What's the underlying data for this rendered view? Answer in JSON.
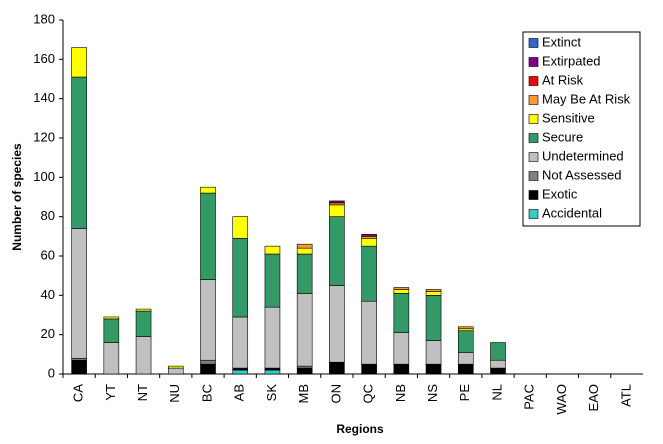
{
  "chart_data": {
    "type": "stacked_bar",
    "x_label": "Regions",
    "y_label": "Number of species",
    "categories": [
      "CA",
      "YT",
      "NT",
      "NU",
      "BC",
      "AB",
      "SK",
      "MB",
      "ON",
      "QC",
      "NB",
      "NS",
      "PE",
      "NL",
      "PAC",
      "WAO",
      "EAO",
      "ATL"
    ],
    "series": [
      {
        "name": "Accidental",
        "color": "#33cccc",
        "values": [
          0,
          0,
          0,
          0,
          0,
          2,
          2,
          0,
          0,
          0,
          0,
          0,
          0,
          0,
          0,
          0,
          0,
          0
        ]
      },
      {
        "name": "Exotic",
        "color": "#000000",
        "values": [
          7,
          0,
          0,
          0,
          5,
          1,
          1,
          3,
          6,
          5,
          5,
          5,
          5,
          3,
          0,
          0,
          0,
          0
        ]
      },
      {
        "name": "Not Assessed",
        "color": "#808080",
        "values": [
          1,
          0,
          0,
          0,
          2,
          0,
          0,
          1,
          0,
          0,
          0,
          0,
          0,
          0,
          0,
          0,
          0,
          0
        ]
      },
      {
        "name": "Undetermined",
        "color": "#c0c0c0",
        "values": [
          66,
          16,
          19,
          3,
          41,
          26,
          31,
          37,
          39,
          32,
          16,
          12,
          6,
          4,
          0,
          0,
          0,
          0
        ]
      },
      {
        "name": "Secure",
        "color": "#339966",
        "values": [
          77,
          12,
          13,
          0,
          44,
          40,
          27,
          20,
          35,
          28,
          20,
          23,
          11,
          9,
          0,
          0,
          0,
          0
        ]
      },
      {
        "name": "Sensitive",
        "color": "#ffff00",
        "values": [
          15,
          1,
          1,
          1,
          3,
          11,
          4,
          3,
          6,
          4,
          2,
          2,
          1,
          0,
          0,
          0,
          0,
          0
        ]
      },
      {
        "name": "May Be At Risk",
        "color": "#ff9933",
        "values": [
          0,
          0,
          0,
          0,
          0,
          0,
          0,
          2,
          1,
          1,
          1,
          1,
          1,
          0,
          0,
          0,
          0,
          0
        ]
      },
      {
        "name": "At Risk",
        "color": "#ff0000",
        "values": [
          0,
          0,
          0,
          0,
          0,
          0,
          0,
          0,
          0,
          0,
          0,
          0,
          0,
          0,
          0,
          0,
          0,
          0
        ]
      },
      {
        "name": "Extirpated",
        "color": "#800080",
        "values": [
          0,
          0,
          0,
          0,
          0,
          0,
          0,
          0,
          1,
          1,
          0,
          0,
          0,
          0,
          0,
          0,
          0,
          0
        ]
      },
      {
        "name": "Extinct",
        "color": "#3366cc",
        "values": [
          0,
          0,
          0,
          0,
          0,
          0,
          0,
          0,
          0,
          0,
          0,
          0,
          0,
          0,
          0,
          0,
          0,
          0
        ]
      }
    ],
    "ylim": [
      0,
      180
    ],
    "yticks": [
      0,
      20,
      40,
      60,
      80,
      100,
      120,
      140,
      160,
      180
    ],
    "grid": false,
    "legend": "top-right"
  }
}
